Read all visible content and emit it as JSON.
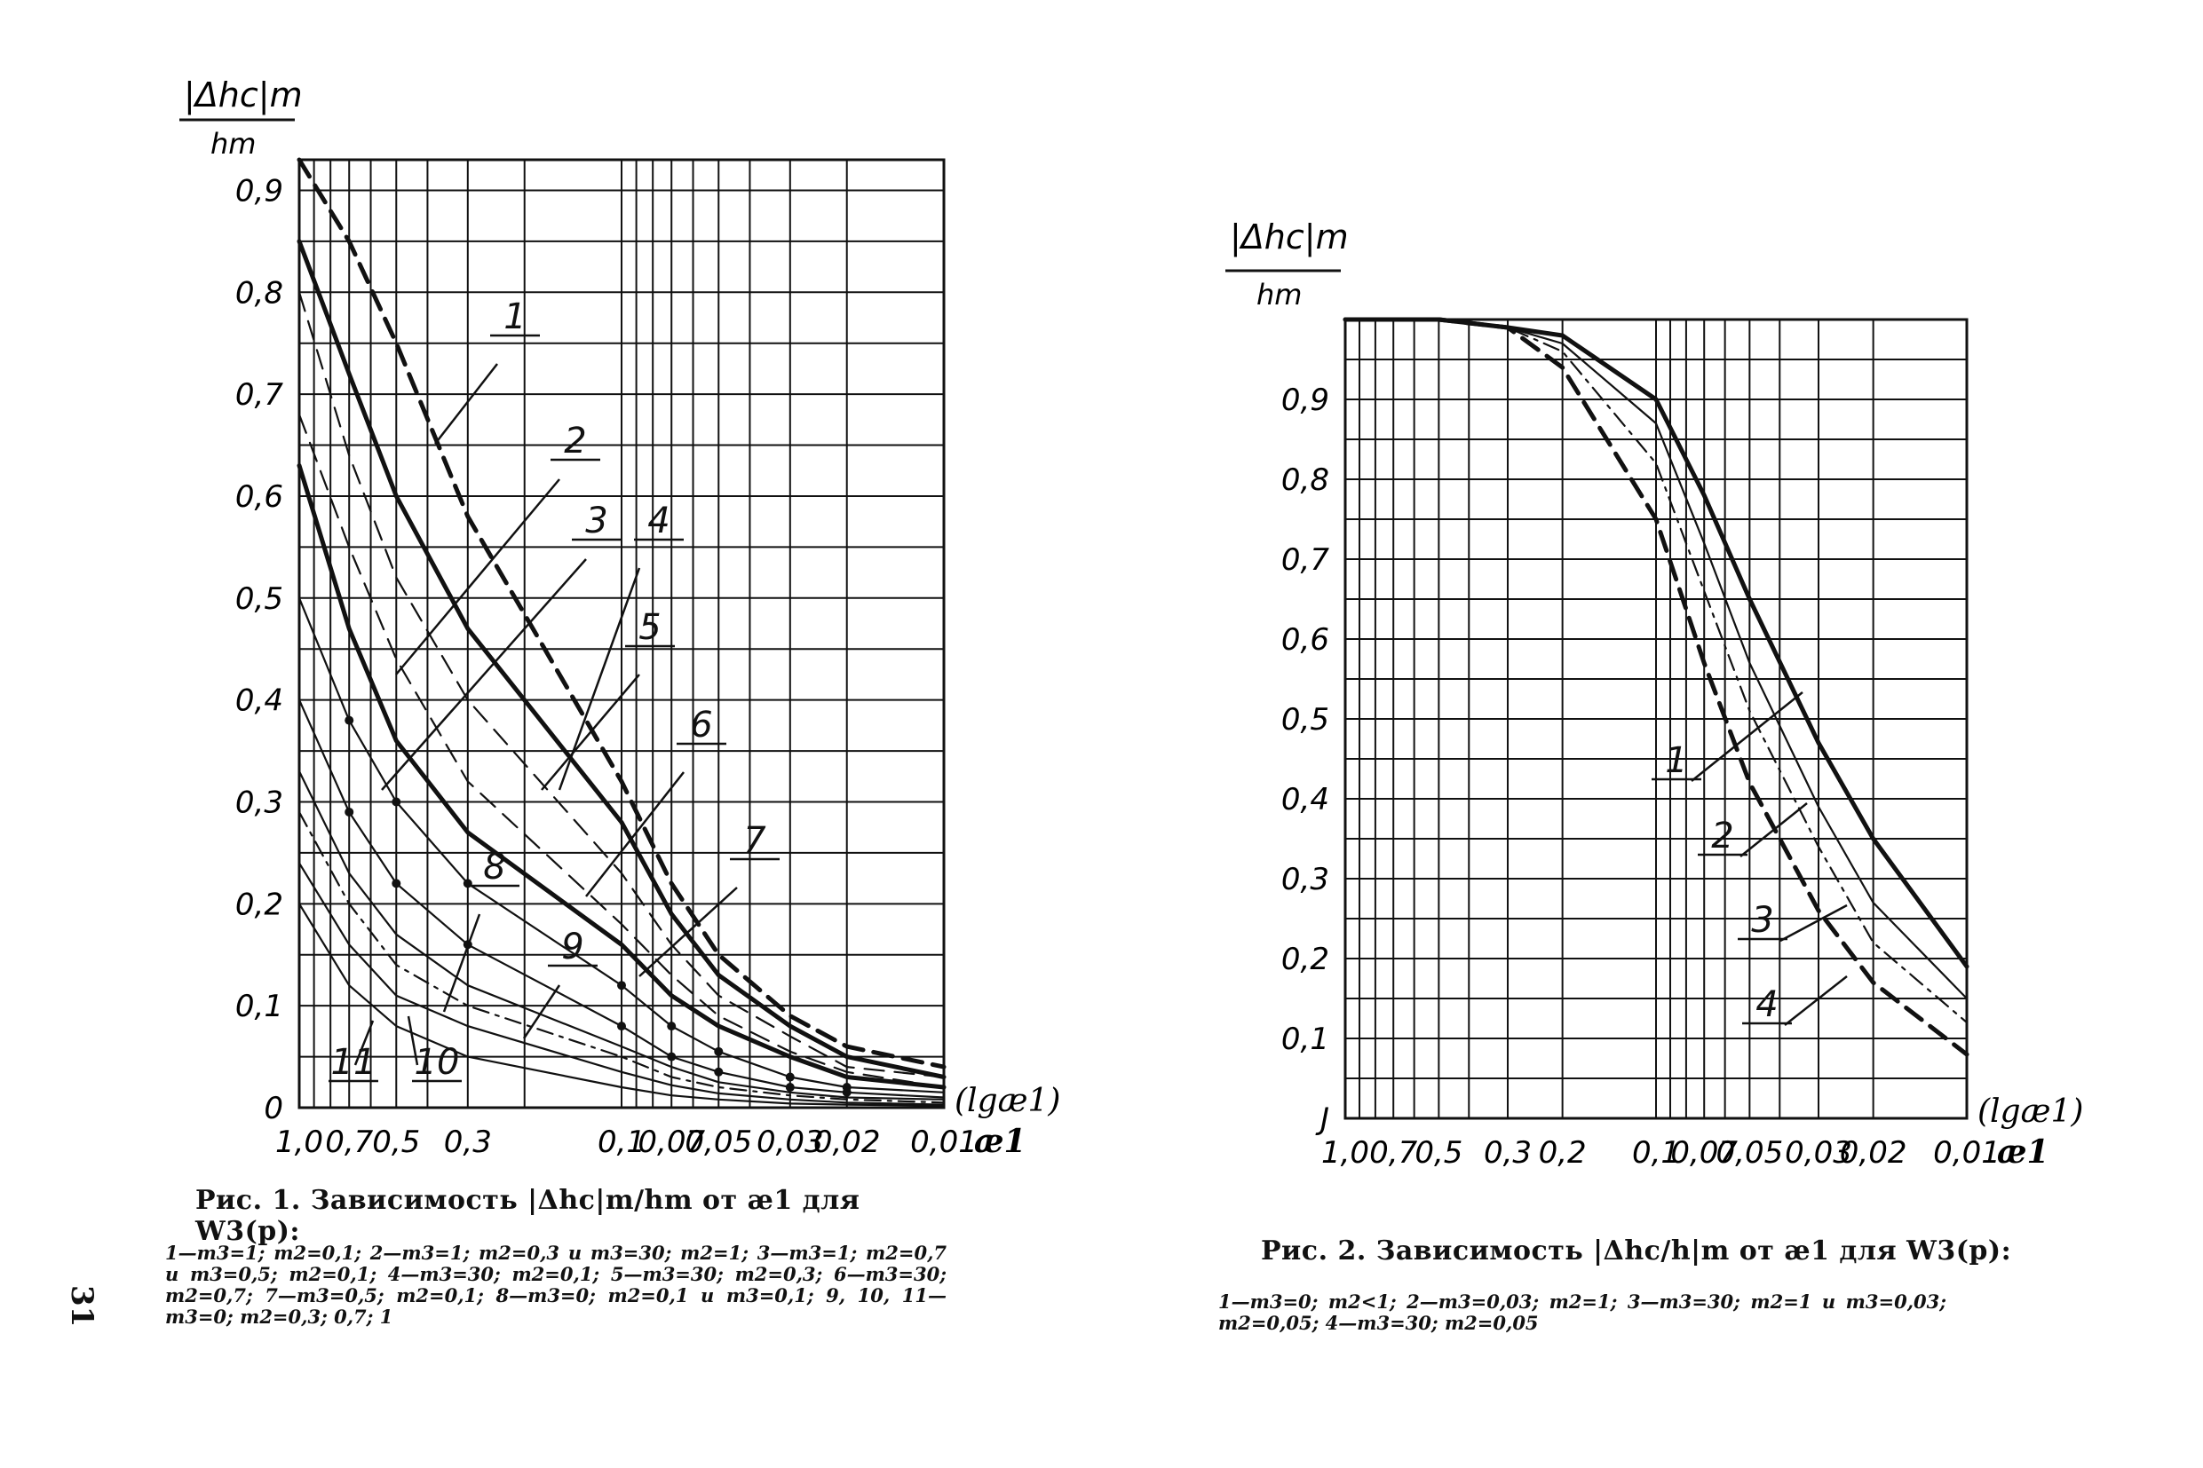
{
  "page_number": "31",
  "chart_data": [
    {
      "type": "line",
      "y_label_num": "|Δhc|m",
      "y_label_den": "hm",
      "x_label": "(lgæ1)",
      "x_unit": "æ1",
      "x_scale": "log",
      "x_ticks": [
        "1,0",
        "0,7",
        "0,5",
        "0,3",
        "0,1",
        "0,07",
        "0,05",
        "0,03",
        "0,02",
        "0,01"
      ],
      "y_ticks": [
        "0",
        "0,1",
        "0,2",
        "0,3",
        "0,4",
        "0,5",
        "0,6",
        "0,7",
        "0,8",
        "0,9"
      ],
      "ylim": [
        0,
        0.93
      ],
      "grid": true,
      "curve_labels": [
        "1",
        "2",
        "3",
        "4",
        "5",
        "6",
        "7",
        "8",
        "9",
        "10",
        "11"
      ],
      "series": [
        {
          "name": "1",
          "style": "dashed-bold",
          "x": [
            1.0,
            0.7,
            0.5,
            0.3,
            0.1,
            0.07,
            0.05,
            0.03,
            0.02,
            0.01
          ],
          "y": [
            0.93,
            0.85,
            0.75,
            0.58,
            0.32,
            0.22,
            0.15,
            0.09,
            0.06,
            0.04
          ]
        },
        {
          "name": "2",
          "style": "solid-bold",
          "x": [
            1.0,
            0.7,
            0.5,
            0.3,
            0.1,
            0.07,
            0.05,
            0.03,
            0.02,
            0.01
          ],
          "y": [
            0.85,
            0.72,
            0.6,
            0.47,
            0.28,
            0.19,
            0.13,
            0.08,
            0.05,
            0.03
          ]
        },
        {
          "name": "3",
          "style": "dashed",
          "x": [
            1.0,
            0.7,
            0.5,
            0.3,
            0.1,
            0.07,
            0.05,
            0.03,
            0.02,
            0.01
          ],
          "y": [
            0.8,
            0.64,
            0.52,
            0.4,
            0.23,
            0.16,
            0.11,
            0.07,
            0.04,
            0.03
          ]
        },
        {
          "name": "4",
          "style": "dashed",
          "x": [
            1.0,
            0.7,
            0.5,
            0.3,
            0.1,
            0.07,
            0.05,
            0.03,
            0.02,
            0.01
          ],
          "y": [
            0.68,
            0.55,
            0.44,
            0.32,
            0.18,
            0.13,
            0.09,
            0.055,
            0.035,
            0.02
          ]
        },
        {
          "name": "5",
          "style": "solid-bold",
          "x": [
            1.0,
            0.7,
            0.5,
            0.3,
            0.1,
            0.07,
            0.05,
            0.03,
            0.02,
            0.01
          ],
          "y": [
            0.63,
            0.47,
            0.36,
            0.27,
            0.16,
            0.11,
            0.08,
            0.05,
            0.03,
            0.02
          ]
        },
        {
          "name": "6",
          "style": "solid-dots",
          "x": [
            1.0,
            0.7,
            0.5,
            0.3,
            0.1,
            0.07,
            0.05,
            0.03,
            0.02,
            0.01
          ],
          "y": [
            0.5,
            0.38,
            0.3,
            0.22,
            0.12,
            0.08,
            0.055,
            0.03,
            0.02,
            0.015
          ]
        },
        {
          "name": "7",
          "style": "solid-dots",
          "x": [
            1.0,
            0.7,
            0.5,
            0.3,
            0.1,
            0.07,
            0.05,
            0.03,
            0.02,
            0.01
          ],
          "y": [
            0.4,
            0.29,
            0.22,
            0.16,
            0.08,
            0.05,
            0.035,
            0.02,
            0.015,
            0.01
          ]
        },
        {
          "name": "8",
          "style": "solid",
          "x": [
            1.0,
            0.7,
            0.5,
            0.3,
            0.1,
            0.07,
            0.05,
            0.03,
            0.02,
            0.01
          ],
          "y": [
            0.33,
            0.23,
            0.17,
            0.12,
            0.06,
            0.04,
            0.025,
            0.015,
            0.01,
            0.008
          ]
        },
        {
          "name": "9",
          "style": "dash-dot",
          "x": [
            1.0,
            0.7,
            0.5,
            0.3,
            0.1,
            0.07,
            0.05,
            0.03,
            0.02,
            0.01
          ],
          "y": [
            0.29,
            0.2,
            0.14,
            0.1,
            0.05,
            0.03,
            0.02,
            0.012,
            0.008,
            0.005
          ]
        },
        {
          "name": "10",
          "style": "solid",
          "x": [
            1.0,
            0.7,
            0.5,
            0.3,
            0.1,
            0.07,
            0.05,
            0.03,
            0.02,
            0.01
          ],
          "y": [
            0.24,
            0.16,
            0.11,
            0.08,
            0.035,
            0.022,
            0.014,
            0.008,
            0.005,
            0.003
          ]
        },
        {
          "name": "11",
          "style": "solid",
          "x": [
            1.0,
            0.7,
            0.5,
            0.3,
            0.1,
            0.07,
            0.05,
            0.03,
            0.02,
            0.01
          ],
          "y": [
            0.2,
            0.12,
            0.08,
            0.05,
            0.02,
            0.012,
            0.008,
            0.004,
            0.003,
            0.002
          ]
        }
      ]
    },
    {
      "type": "line",
      "y_label_num": "|Δhc|m",
      "y_label_den": "hm",
      "x_label": "(lgæ1)",
      "x_unit": "æ1",
      "x_scale": "log",
      "x_ticks": [
        "1,0",
        "0,7",
        "0,5",
        "0,3",
        "0,2",
        "0,1",
        "0,07",
        "0,05",
        "0,03",
        "0,02",
        "0,01"
      ],
      "y_ticks": [
        "0",
        "0,1",
        "0,2",
        "0,3",
        "0,4",
        "0,5",
        "0,6",
        "0,7",
        "0,8",
        "0,9"
      ],
      "y_zero_tick_display": "J",
      "ylim": [
        0,
        1.0
      ],
      "grid": true,
      "curve_labels": [
        "1",
        "2",
        "3",
        "4"
      ],
      "series": [
        {
          "name": "1",
          "style": "solid-bold",
          "x": [
            1.0,
            0.5,
            0.3,
            0.2,
            0.1,
            0.07,
            0.05,
            0.03,
            0.02,
            0.01
          ],
          "y": [
            1.0,
            1.0,
            0.99,
            0.98,
            0.9,
            0.78,
            0.65,
            0.47,
            0.35,
            0.19
          ]
        },
        {
          "name": "2",
          "style": "solid",
          "x": [
            1.0,
            0.5,
            0.3,
            0.2,
            0.1,
            0.07,
            0.05,
            0.03,
            0.02,
            0.01
          ],
          "y": [
            1.0,
            1.0,
            0.99,
            0.97,
            0.87,
            0.72,
            0.57,
            0.39,
            0.27,
            0.15
          ]
        },
        {
          "name": "3",
          "style": "dash-dot",
          "x": [
            1.0,
            0.5,
            0.3,
            0.2,
            0.1,
            0.07,
            0.05,
            0.03,
            0.02,
            0.01
          ],
          "y": [
            1.0,
            1.0,
            0.99,
            0.96,
            0.82,
            0.66,
            0.51,
            0.34,
            0.22,
            0.12
          ]
        },
        {
          "name": "4",
          "style": "dashed-bold",
          "x": [
            1.0,
            0.5,
            0.3,
            0.2,
            0.1,
            0.07,
            0.05,
            0.03,
            0.02,
            0.01
          ],
          "y": [
            1.0,
            1.0,
            0.99,
            0.94,
            0.75,
            0.57,
            0.42,
            0.26,
            0.17,
            0.08
          ]
        }
      ]
    }
  ],
  "captions": {
    "fig1_title": "Рис. 1. Зависимость |Δhc|m/hm от æ1 для W3(p):",
    "fig1_legend": "1—m3=1; m2=0,1; 2—m3=1; m2=0,3 и m3=30; m2=1; 3—m3=1; m2=0,7 и m3=0,5; m2=0,1; 4—m3=30; m2=0,1; 5—m3=30; m2=0,3; 6—m3=30; m2=0,7; 7—m3=0,5; m2=0,1; 8—m3=0; m2=0,1 и m3=0,1; 9, 10, 11—m3=0; m2=0,3; 0,7; 1",
    "fig2_title": "Рис. 2. Зависимость |Δhc/h|m от æ1 для W3(p):",
    "fig2_legend": "1—m3=0; m2<1; 2—m3=0,03; m2=1; 3—m3=30; m2=1 и m3=0,03; m2=0,05; 4—m3=30; m2=0,05"
  }
}
